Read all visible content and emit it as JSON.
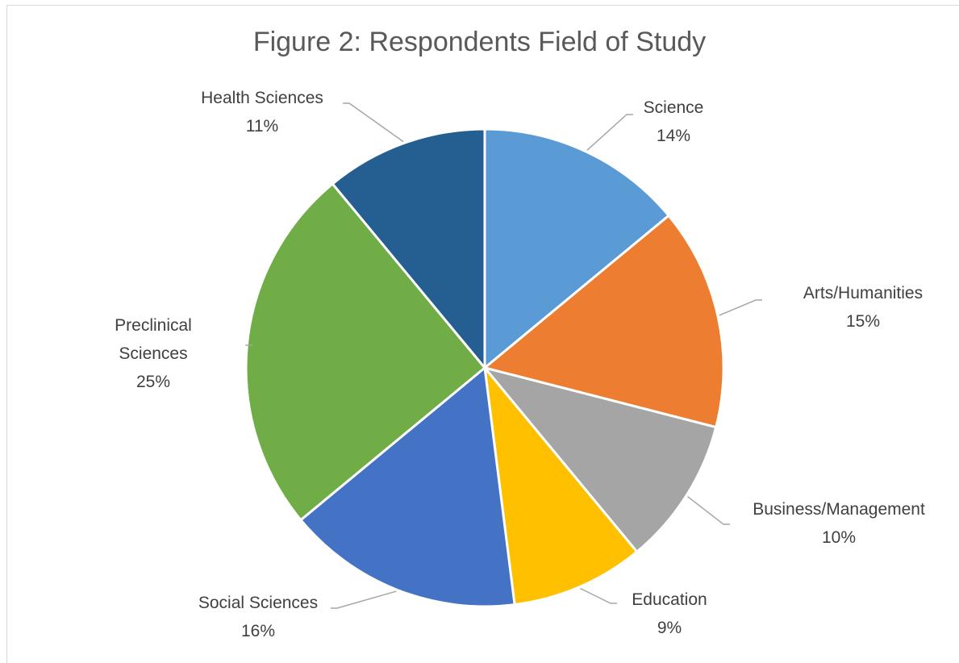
{
  "chart_data": {
    "type": "pie",
    "title": "Figure 2: Respondents Field of Study",
    "categories": [
      "Science",
      "Arts/Humanities",
      "Business/Management",
      "Education",
      "Social Sciences",
      "Preclinical Sciences",
      "Health Sciences"
    ],
    "values": [
      14,
      15,
      10,
      9,
      16,
      25,
      11
    ],
    "value_labels": [
      "14%",
      "15%",
      "10%",
      "9%",
      "16%",
      "25%",
      "11%"
    ],
    "colors": [
      "#5b9bd5",
      "#ed7d31",
      "#a5a5a5",
      "#ffc000",
      "#4472c4",
      "#70ad47",
      "#255e91"
    ]
  }
}
